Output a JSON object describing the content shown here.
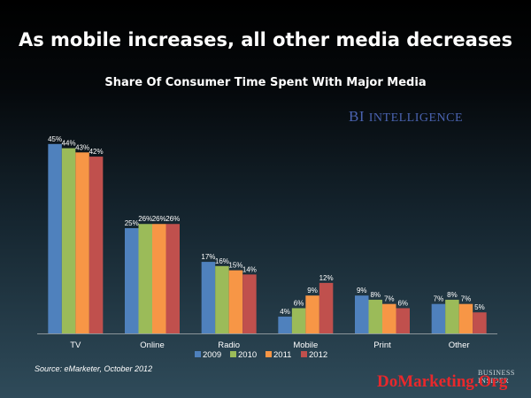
{
  "headline": "As mobile increases, all other media decreases",
  "brand": {
    "bi": "BI",
    "intelligence": "INTELLIGENCE",
    "business_insider": "BUSINESS INSIDER"
  },
  "source": "Source: eMarketer, October 2012",
  "watermark": "DoMarketing.Org",
  "colors": {
    "2009": "#4f81bd",
    "2010": "#9bbb59",
    "2011": "#f79646",
    "2012": "#c0504d"
  },
  "chart_data": {
    "type": "bar",
    "title": "Share Of Consumer Time Spent With Major Media",
    "categories": [
      "TV",
      "Online",
      "Radio",
      "Mobile",
      "Print",
      "Other"
    ],
    "series": [
      {
        "name": "2009",
        "values": [
          45,
          25,
          17,
          4,
          9,
          7
        ],
        "labels": [
          "45%",
          "25%",
          "17%",
          "4%",
          "9%",
          "7%"
        ]
      },
      {
        "name": "2010",
        "values": [
          44,
          26,
          16,
          6,
          8,
          8
        ],
        "labels": [
          "44%",
          "26%",
          "16%",
          "6%",
          "8%",
          "8%"
        ]
      },
      {
        "name": "2011",
        "values": [
          43,
          26,
          15,
          9,
          7,
          7
        ],
        "labels": [
          "43%",
          "26%",
          "15%",
          "9%",
          "7%",
          "7%"
        ]
      },
      {
        "name": "2012",
        "values": [
          42,
          26,
          14,
          12,
          6,
          5
        ],
        "labels": [
          "42%",
          "26%",
          "14%",
          "12%",
          "6%",
          "5%"
        ]
      }
    ],
    "ylim": [
      0,
      50
    ],
    "grid": false,
    "legend": "bottom"
  }
}
